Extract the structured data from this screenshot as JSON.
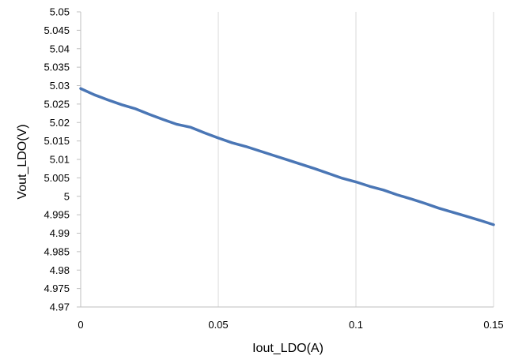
{
  "chart_data": {
    "type": "line",
    "title": "",
    "xlabel": "Iout_LDO(A)",
    "ylabel": "Vout_LDO(V)",
    "xlim": [
      0,
      0.15
    ],
    "ylim": [
      4.97,
      5.05
    ],
    "x_ticks": [
      "0",
      "0.05",
      "0.1",
      "0.15"
    ],
    "y_ticks": [
      "4.97",
      "4.975",
      "4.98",
      "4.985",
      "4.99",
      "4.995",
      "5",
      "5.005",
      "5.01",
      "5.015",
      "5.02",
      "5.025",
      "5.03",
      "5.035",
      "5.04",
      "5.045",
      "5.05"
    ],
    "grid": "vertical",
    "series": [
      {
        "color": "#4a76b5",
        "x": [
          0,
          0.005,
          0.01,
          0.015,
          0.02,
          0.025,
          0.03,
          0.035,
          0.04,
          0.045,
          0.05,
          0.055,
          0.06,
          0.065,
          0.07,
          0.075,
          0.08,
          0.085,
          0.09,
          0.095,
          0.1,
          0.105,
          0.11,
          0.115,
          0.12,
          0.125,
          0.13,
          0.135,
          0.14,
          0.145,
          0.15
        ],
        "y": [
          5.0292,
          5.0275,
          5.0261,
          5.0248,
          5.0237,
          5.0222,
          5.0208,
          5.0195,
          5.0187,
          5.0172,
          5.0158,
          5.0145,
          5.0135,
          5.0123,
          5.0111,
          5.0099,
          5.0087,
          5.0075,
          5.0062,
          5.0049,
          5.0039,
          5.0027,
          5.0017,
          5.0004,
          4.9993,
          4.9981,
          4.9968,
          4.9957,
          4.9946,
          4.9935,
          4.9923
        ]
      }
    ]
  }
}
